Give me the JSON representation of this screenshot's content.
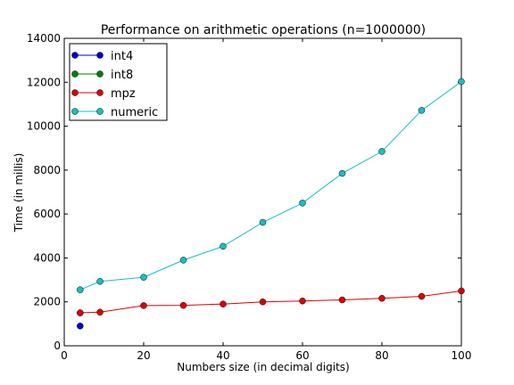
{
  "chart_data": {
    "type": "line",
    "title": "Performance on arithmetic operations (n=1000000)",
    "xlabel": "Numbers size (in decimal digits)",
    "ylabel": "Time (in millis)",
    "xlim": [
      0,
      100
    ],
    "ylim": [
      0,
      14000
    ],
    "xticks": [
      0,
      20,
      40,
      60,
      80,
      100
    ],
    "yticks": [
      0,
      2000,
      4000,
      6000,
      8000,
      10000,
      12000,
      14000
    ],
    "grid": false,
    "legend_position": "top-left",
    "series": [
      {
        "name": "int4",
        "color": "#0000cc",
        "points": [
          {
            "x": 4,
            "y": 900
          }
        ]
      },
      {
        "name": "int8",
        "color": "#007f00",
        "points": [
          {
            "x": 4,
            "y": 1500
          }
        ]
      },
      {
        "name": "mpz",
        "color": "#dd0000",
        "points": [
          {
            "x": 4,
            "y": 1500
          },
          {
            "x": 9,
            "y": 1530
          },
          {
            "x": 20,
            "y": 1830
          },
          {
            "x": 30,
            "y": 1840
          },
          {
            "x": 40,
            "y": 1900
          },
          {
            "x": 50,
            "y": 2000
          },
          {
            "x": 60,
            "y": 2040
          },
          {
            "x": 70,
            "y": 2090
          },
          {
            "x": 80,
            "y": 2160
          },
          {
            "x": 90,
            "y": 2250
          },
          {
            "x": 100,
            "y": 2500
          }
        ]
      },
      {
        "name": "numeric",
        "color": "#17bfbf",
        "points": [
          {
            "x": 4,
            "y": 2550
          },
          {
            "x": 9,
            "y": 2930
          },
          {
            "x": 20,
            "y": 3120
          },
          {
            "x": 30,
            "y": 3900
          },
          {
            "x": 40,
            "y": 4530
          },
          {
            "x": 50,
            "y": 5620
          },
          {
            "x": 60,
            "y": 6500
          },
          {
            "x": 70,
            "y": 7850
          },
          {
            "x": 80,
            "y": 8850
          },
          {
            "x": 90,
            "y": 10720
          },
          {
            "x": 100,
            "y": 12030
          }
        ]
      }
    ]
  }
}
